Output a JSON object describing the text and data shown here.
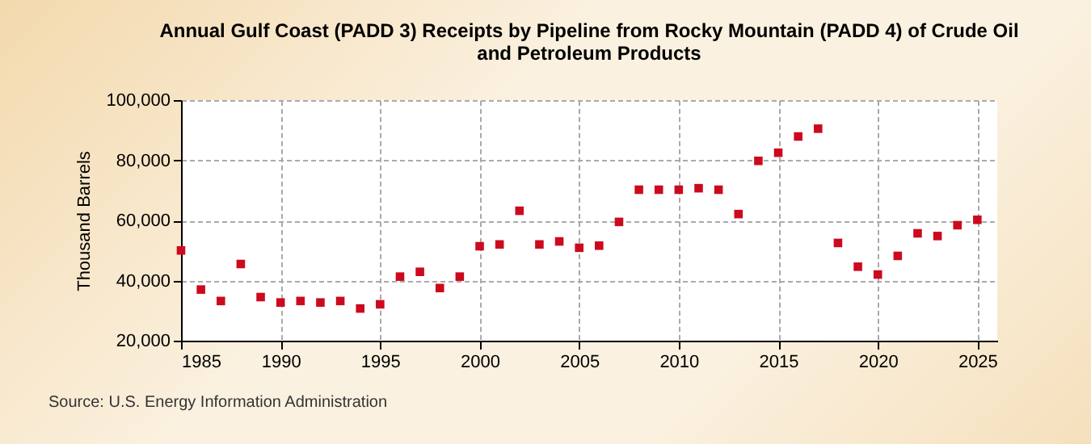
{
  "chart_data": {
    "type": "scatter",
    "title": "Annual Gulf Coast (PADD 3) Receipts by Pipeline from Rocky Mountain (PADD 4) of Crude Oil and Petroleum Products",
    "ylabel": "Thousand Barrels",
    "annotations": [
      "Source: U.S. Energy Information Administration"
    ],
    "x": [
      1985,
      1986,
      1987,
      1988,
      1989,
      1990,
      1991,
      1992,
      1993,
      1994,
      1995,
      1996,
      1997,
      1998,
      1999,
      2000,
      2001,
      2002,
      2003,
      2004,
      2005,
      2006,
      2007,
      2008,
      2009,
      2010,
      2011,
      2012,
      2013,
      2014,
      2015,
      2016,
      2017,
      2018,
      2019,
      2020,
      2021,
      2022,
      2023,
      2024,
      2025
    ],
    "series": [
      {
        "color": "#cc0a1e",
        "values": [
          50000,
          37000,
          33200,
          45500,
          34500,
          32700,
          33200,
          32700,
          33200,
          30700,
          32100,
          41300,
          42900,
          37500,
          41300,
          51400,
          52000,
          63200,
          52000,
          53000,
          50900,
          51600,
          59500,
          70200,
          70200,
          70200,
          70700,
          70200,
          62100,
          79800,
          82500,
          87900,
          90500,
          52500,
          44600,
          42000,
          48200,
          55700,
          54800,
          58400,
          60200
        ]
      }
    ],
    "xlim": [
      1985,
      2026
    ],
    "xticks": [
      1985,
      1990,
      1995,
      2000,
      2005,
      2010,
      2015,
      2020,
      2025
    ],
    "ylim": [
      20000,
      100000
    ],
    "yticks": [
      {
        "value": 20000,
        "label": "20,000"
      },
      {
        "value": 40000,
        "label": "40,000"
      },
      {
        "value": 60000,
        "label": "60,000"
      },
      {
        "value": 80000,
        "label": "80,000"
      },
      {
        "value": 100000,
        "label": "100,000"
      }
    ],
    "grid": true,
    "marker": "square"
  }
}
